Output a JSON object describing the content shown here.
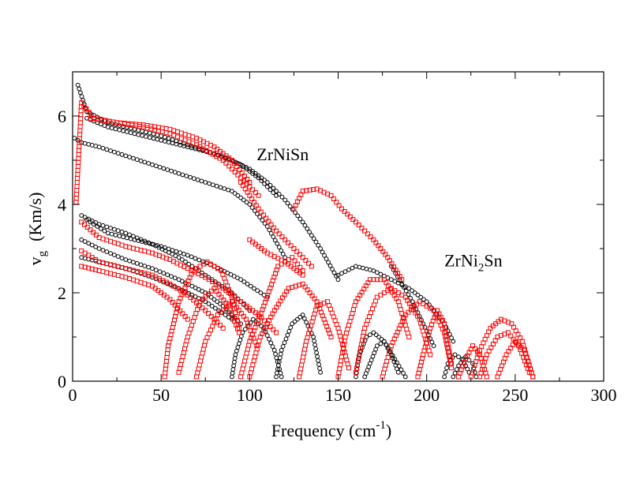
{
  "chart_data": {
    "type": "scatter",
    "xlabel": "Frequency (cm",
    "xlabel_sup": "-1",
    "xlabel_close": ")",
    "ylabel_main": "v",
    "ylabel_sub": "g",
    "ylabel_unit": "(Km/s)",
    "xlim": [
      0,
      300
    ],
    "ylim": [
      0,
      7
    ],
    "xticks": [
      0,
      50,
      100,
      150,
      200,
      250,
      300
    ],
    "yticks": [
      0,
      2,
      4,
      6
    ],
    "x_tick_labels": [
      "0",
      "50",
      "100",
      "150",
      "200",
      "250",
      "300"
    ],
    "y_tick_labels": [
      "0",
      "2",
      "4",
      "6"
    ],
    "grid": false,
    "annotations": [
      {
        "series": "ZrNiSn",
        "text_parts": [
          "ZrNiSn"
        ],
        "x": 104,
        "y": 5.0,
        "color": "#000000"
      },
      {
        "series": "ZrNi2Sn",
        "text_parts": [
          "ZrNi",
          "2",
          "Sn"
        ],
        "x": 210,
        "y": 2.6,
        "color": "#ff0000"
      }
    ],
    "series": [
      {
        "name": "ZrNiSn",
        "marker": "circle",
        "color": "#000000",
        "curves": [
          {
            "x": [
              1,
              5,
              15,
              30,
              45,
              60,
              75,
              90,
              100,
              110,
              120
            ],
            "y": [
              5.5,
              5.4,
              5.3,
              5.1,
              4.9,
              4.7,
              4.5,
              4.3,
              4.0,
              3.5,
              2.8
            ]
          },
          {
            "x": [
              3,
              8,
              20,
              35,
              50,
              65,
              80,
              95,
              105,
              115
            ],
            "y": [
              6.7,
              6.1,
              5.85,
              5.7,
              5.55,
              5.35,
              5.15,
              4.9,
              4.6,
              4.2
            ]
          },
          {
            "x": [
              8,
              20,
              35,
              50,
              65,
              80,
              90,
              100,
              110,
              120,
              130,
              140,
              150
            ],
            "y": [
              5.95,
              5.75,
              5.6,
              5.45,
              5.3,
              5.15,
              5.0,
              4.8,
              4.5,
              4.1,
              3.6,
              3.0,
              2.3
            ]
          },
          {
            "x": [
              5,
              15,
              30,
              45,
              60,
              75,
              90,
              100
            ],
            "y": [
              3.75,
              3.55,
              3.35,
              3.1,
              2.8,
              2.4,
              2.0,
              1.6
            ]
          },
          {
            "x": [
              5,
              15,
              30,
              45,
              60,
              75,
              85,
              95
            ],
            "y": [
              3.2,
              3.0,
              2.75,
              2.55,
              2.3,
              2.0,
              1.7,
              1.3
            ]
          },
          {
            "x": [
              8,
              20,
              35,
              50,
              65,
              80,
              95,
              110
            ],
            "y": [
              3.65,
              3.35,
              3.2,
              3.05,
              2.85,
              2.6,
              2.3,
              1.9
            ]
          },
          {
            "x": [
              5,
              15,
              30,
              45,
              60,
              75,
              90
            ],
            "y": [
              2.8,
              2.7,
              2.55,
              2.35,
              2.1,
              1.8,
              1.4
            ]
          },
          {
            "x": [
              90,
              92,
              96,
              102,
              108,
              114,
              118
            ],
            "y": [
              0.1,
              0.6,
              1.1,
              1.4,
              1.2,
              0.7,
              0.1
            ]
          },
          {
            "x": [
              115,
              118,
              124,
              130,
              136,
              140
            ],
            "y": [
              0.1,
              0.7,
              1.3,
              1.5,
              1.0,
              0.2
            ]
          },
          {
            "x": [
              160,
              162,
              166,
              170,
              176,
              182,
              188
            ],
            "y": [
              0.1,
              0.6,
              1.0,
              1.1,
              0.9,
              0.5,
              0.1
            ]
          },
          {
            "x": [
              165,
              168,
              172,
              176,
              180,
              184
            ],
            "y": [
              0.1,
              0.4,
              0.8,
              0.9,
              0.6,
              0.2
            ]
          },
          {
            "x": [
              150,
              160,
              170,
              180,
              190,
              200,
              210,
              215
            ],
            "y": [
              2.4,
              2.6,
              2.5,
              2.3,
              2.1,
              1.8,
              1.3,
              0.9
            ]
          },
          {
            "x": [
              180,
              186,
              192,
              198,
              204
            ],
            "y": [
              2.6,
              2.2,
              1.8,
              1.3,
              0.8
            ]
          },
          {
            "x": [
              210,
              212,
              216,
              220,
              224
            ],
            "y": [
              0.1,
              0.4,
              0.6,
              0.5,
              0.2
            ]
          },
          {
            "x": [
              215,
              218,
              222,
              226,
              228
            ],
            "y": [
              0.1,
              0.35,
              0.55,
              0.4,
              0.1
            ]
          }
        ]
      },
      {
        "name": "ZrNi2Sn",
        "marker": "square",
        "color": "#ff0000",
        "curves": [
          {
            "x": [
              2,
              5,
              12,
              25,
              40,
              55,
              70,
              85,
              95,
              105
            ],
            "y": [
              4.05,
              6.3,
              5.95,
              5.85,
              5.75,
              5.6,
              5.35,
              5.0,
              4.6,
              4.2
            ]
          },
          {
            "x": [
              10,
              25,
              40,
              55,
              70,
              80,
              90,
              100
            ],
            "y": [
              5.95,
              5.85,
              5.8,
              5.7,
              5.5,
              5.3,
              5.0,
              4.5
            ]
          },
          {
            "x": [
              5,
              15,
              30,
              45,
              55,
              65,
              75,
              85,
              95,
              105,
              115
            ],
            "y": [
              3.6,
              3.25,
              3.05,
              2.9,
              2.75,
              2.55,
              2.35,
              2.1,
              1.8,
              1.5,
              1.1
            ]
          },
          {
            "x": [
              5,
              15,
              30,
              45,
              55,
              65,
              75,
              85
            ],
            "y": [
              2.95,
              2.7,
              2.55,
              2.4,
              2.2,
              1.95,
              1.6,
              1.2
            ]
          },
          {
            "x": [
              5,
              15,
              30,
              45,
              55,
              65
            ],
            "y": [
              2.6,
              2.5,
              2.35,
              2.15,
              1.85,
              1.4
            ]
          },
          {
            "x": [
              52,
              54,
              60,
              68,
              76,
              84,
              90,
              94
            ],
            "y": [
              0.1,
              0.8,
              1.8,
              2.5,
              2.7,
              2.5,
              1.9,
              1.2
            ]
          },
          {
            "x": [
              60,
              65,
              72,
              80,
              88,
              94
            ],
            "y": [
              0.2,
              1.0,
              1.8,
              2.1,
              1.7,
              1.1
            ]
          },
          {
            "x": [
              70,
              75,
              82,
              90,
              98,
              104
            ],
            "y": [
              0.1,
              0.9,
              1.5,
              1.8,
              1.4,
              0.8
            ]
          },
          {
            "x": [
              95,
              100,
              108,
              116,
              124,
              130
            ],
            "y": [
              0.1,
              0.9,
              1.7,
              2.6,
              2.8,
              2.5
            ]
          },
          {
            "x": [
              100,
              106,
              114,
              122,
              130,
              138,
              146
            ],
            "y": [
              0.1,
              1.0,
              1.6,
              2.1,
              2.2,
              1.8,
              1.0
            ]
          },
          {
            "x": [
              128,
              132,
              138,
              144,
              150,
              156
            ],
            "y": [
              0.1,
              0.9,
              1.7,
              1.8,
              1.2,
              0.3
            ]
          },
          {
            "x": [
              125,
              130,
              138,
              146,
              152,
              160,
              170,
              178,
              186
            ],
            "y": [
              3.9,
              4.3,
              4.35,
              4.2,
              3.9,
              3.6,
              3.2,
              2.8,
              2.3
            ]
          },
          {
            "x": [
              95,
              105,
              115,
              125,
              135
            ],
            "y": [
              4.5,
              3.9,
              3.4,
              3.0,
              2.6
            ]
          },
          {
            "x": [
              100,
              110,
              120,
              130
            ],
            "y": [
              3.2,
              2.9,
              2.7,
              2.4
            ]
          },
          {
            "x": [
              150,
              154,
              160,
              168,
              176,
              184,
              190
            ],
            "y": [
              0.1,
              1.0,
              1.8,
              2.3,
              2.3,
              1.8,
              1.0
            ]
          },
          {
            "x": [
              160,
              165,
              172,
              180,
              188,
              196,
              202
            ],
            "y": [
              0.2,
              1.2,
              1.9,
              2.1,
              1.9,
              1.4,
              0.6
            ]
          },
          {
            "x": [
              175,
              180,
              188,
              196,
              204,
              210,
              214
            ],
            "y": [
              0.1,
              0.8,
              1.5,
              1.8,
              1.6,
              1.1,
              0.3
            ]
          },
          {
            "x": [
              195,
              198,
              202,
              206,
              210,
              214
            ],
            "y": [
              0.1,
              0.6,
              1.2,
              1.6,
              1.3,
              0.4
            ]
          },
          {
            "x": [
              225,
              230,
              236,
              242,
              248,
              254,
              260
            ],
            "y": [
              0.1,
              0.7,
              1.2,
              1.4,
              1.3,
              0.9,
              0.1
            ]
          },
          {
            "x": [
              230,
              234,
              240,
              246,
              252,
              258
            ],
            "y": [
              0.1,
              0.6,
              1.0,
              1.1,
              0.8,
              0.2
            ]
          },
          {
            "x": [
              218,
              222,
              226,
              230,
              234
            ],
            "y": [
              0.1,
              0.5,
              0.8,
              0.6,
              0.1
            ]
          },
          {
            "x": [
              240,
              245,
              250,
              255,
              260
            ],
            "y": [
              0.1,
              0.6,
              0.9,
              0.7,
              0.1
            ]
          }
        ]
      }
    ]
  }
}
